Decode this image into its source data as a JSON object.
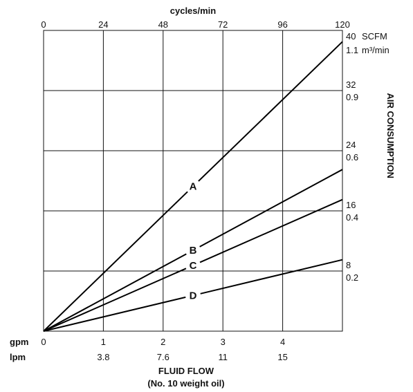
{
  "chart_data": {
    "type": "line",
    "xlabel": "FLUID FLOW",
    "xlabel_sub": "(No. 10 weight oil)",
    "ylabel": "AIR CONSUMPTION",
    "top_axis": {
      "title": "cycles/min",
      "ticks": [
        "0",
        "24",
        "48",
        "72",
        "96",
        "120"
      ],
      "range": [
        0,
        120
      ]
    },
    "x_axis": {
      "unit_gpm": "gpm",
      "unit_lpm": "lpm",
      "range": [
        0,
        5
      ],
      "gpm_ticks": [
        {
          "value": 0,
          "label": "0"
        },
        {
          "value": 1,
          "label": "1"
        },
        {
          "value": 2,
          "label": "2"
        },
        {
          "value": 3,
          "label": "3"
        },
        {
          "value": 4,
          "label": "4"
        }
      ],
      "lpm_ticks": [
        {
          "value": 1,
          "label": "3.8"
        },
        {
          "value": 2,
          "label": "7.6"
        },
        {
          "value": 3,
          "label": "11"
        },
        {
          "value": 4,
          "label": "15"
        }
      ]
    },
    "y_axis": {
      "range": [
        0,
        40
      ],
      "unit_scfm": "SCFM",
      "unit_m3": "m³/min",
      "ticks": [
        {
          "value": 40,
          "scfm": "40",
          "m3": "1.1"
        },
        {
          "value": 32,
          "scfm": "32",
          "m3": "0.9"
        },
        {
          "value": 24,
          "scfm": "24",
          "m3": "0.6"
        },
        {
          "value": 16,
          "scfm": "16",
          "m3": "0.4"
        },
        {
          "value": 8,
          "scfm": "8",
          "m3": "0.2"
        }
      ]
    },
    "grid": true,
    "series": [
      {
        "name": "A",
        "x": [
          0,
          5
        ],
        "y": [
          0,
          38.5
        ],
        "label_at_x": 2.5
      },
      {
        "name": "B",
        "x": [
          0,
          5
        ],
        "y": [
          0,
          21.5
        ],
        "label_at_x": 2.5
      },
      {
        "name": "C",
        "x": [
          0,
          5
        ],
        "y": [
          0,
          17.5
        ],
        "label_at_x": 2.5
      },
      {
        "name": "D",
        "x": [
          0,
          5
        ],
        "y": [
          0,
          9.5
        ],
        "label_at_x": 2.5
      }
    ]
  }
}
